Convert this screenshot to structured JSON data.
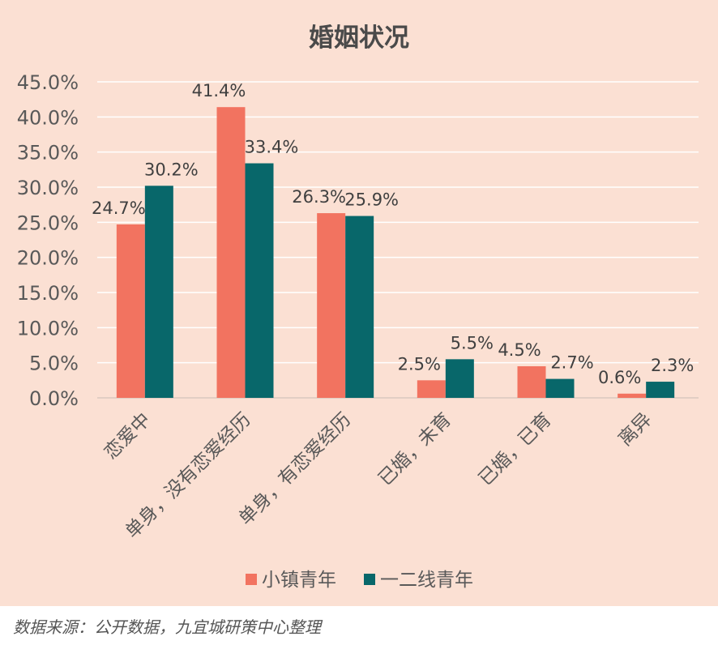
{
  "chart_data": {
    "type": "bar",
    "title": "婚姻状况",
    "categories": [
      "恋爱中",
      "单身，没有恋爱经历",
      "单身，有恋爱经历",
      "已婚，未育",
      "已婚，已育",
      "离异"
    ],
    "series": [
      {
        "name": "小镇青年",
        "values": [
          24.7,
          41.4,
          26.3,
          2.5,
          4.5,
          0.6
        ],
        "labels": [
          "24.7%",
          "41.4%",
          "26.3%",
          "2.5%",
          "4.5%",
          "0.6%"
        ],
        "color": "#f27360"
      },
      {
        "name": "一二线青年",
        "values": [
          30.2,
          33.4,
          25.9,
          5.5,
          2.7,
          2.3
        ],
        "labels": [
          "30.2%",
          "33.4%",
          "25.9%",
          "5.5%",
          "2.7%",
          "2.3%"
        ],
        "color": "#08676a"
      }
    ],
    "yticks": [
      "0.0%",
      "5.0%",
      "10.0%",
      "15.0%",
      "20.0%",
      "25.0%",
      "30.0%",
      "35.0%",
      "40.0%",
      "45.0%"
    ],
    "ylim": [
      0,
      45
    ],
    "grid": true,
    "legend_position": "bottom"
  },
  "colors": {
    "background": "#fbe0d3",
    "grid": "#ffffff",
    "text": "#595959"
  },
  "source": "数据来源：公开数据，九宜城研策中心整理"
}
